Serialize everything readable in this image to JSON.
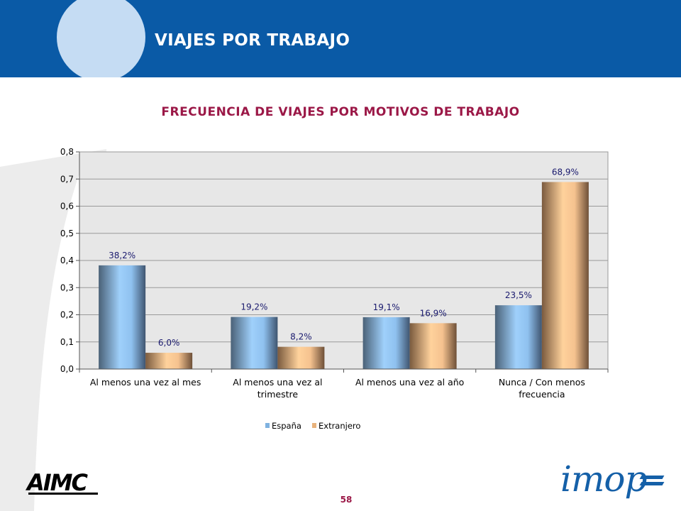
{
  "header": {
    "title": "VIAJES POR TRABAJO"
  },
  "footer": {
    "page_number": "58",
    "left_logo": "AIMC",
    "right_logo": "imop"
  },
  "colors": {
    "header_bg": "#0a5aa6",
    "title_color": "#9b1847",
    "espana": "#8fc1ef",
    "extranjero": "#f5c28f",
    "plot_bg": "#e7e7e7"
  },
  "chart_data": {
    "type": "bar",
    "title": "FRECUENCIA DE VIAJES POR MOTIVOS DE TRABAJO",
    "categories": [
      [
        "Al menos una vez al mes"
      ],
      [
        "Al menos una vez al",
        "trimestre"
      ],
      [
        "Al menos una vez al año"
      ],
      [
        "Nunca / Con menos",
        "frecuencia"
      ]
    ],
    "series": [
      {
        "name": "España",
        "values": [
          0.382,
          0.192,
          0.191,
          0.235
        ],
        "labels": [
          "38,2%",
          "19,2%",
          "19,1%",
          "23,5%"
        ]
      },
      {
        "name": "Extranjero",
        "values": [
          0.06,
          0.082,
          0.169,
          0.689
        ],
        "labels": [
          "6,0%",
          "8,2%",
          "16,9%",
          "68,9%"
        ]
      }
    ],
    "ylim": [
      0,
      0.8
    ],
    "yticks": [
      "0,0",
      "0,1",
      "0,2",
      "0,3",
      "0,4",
      "0,5",
      "0,6",
      "0,7",
      "0,8"
    ],
    "grid": true,
    "legend": "bottom",
    "xlabel": "",
    "ylabel": ""
  }
}
